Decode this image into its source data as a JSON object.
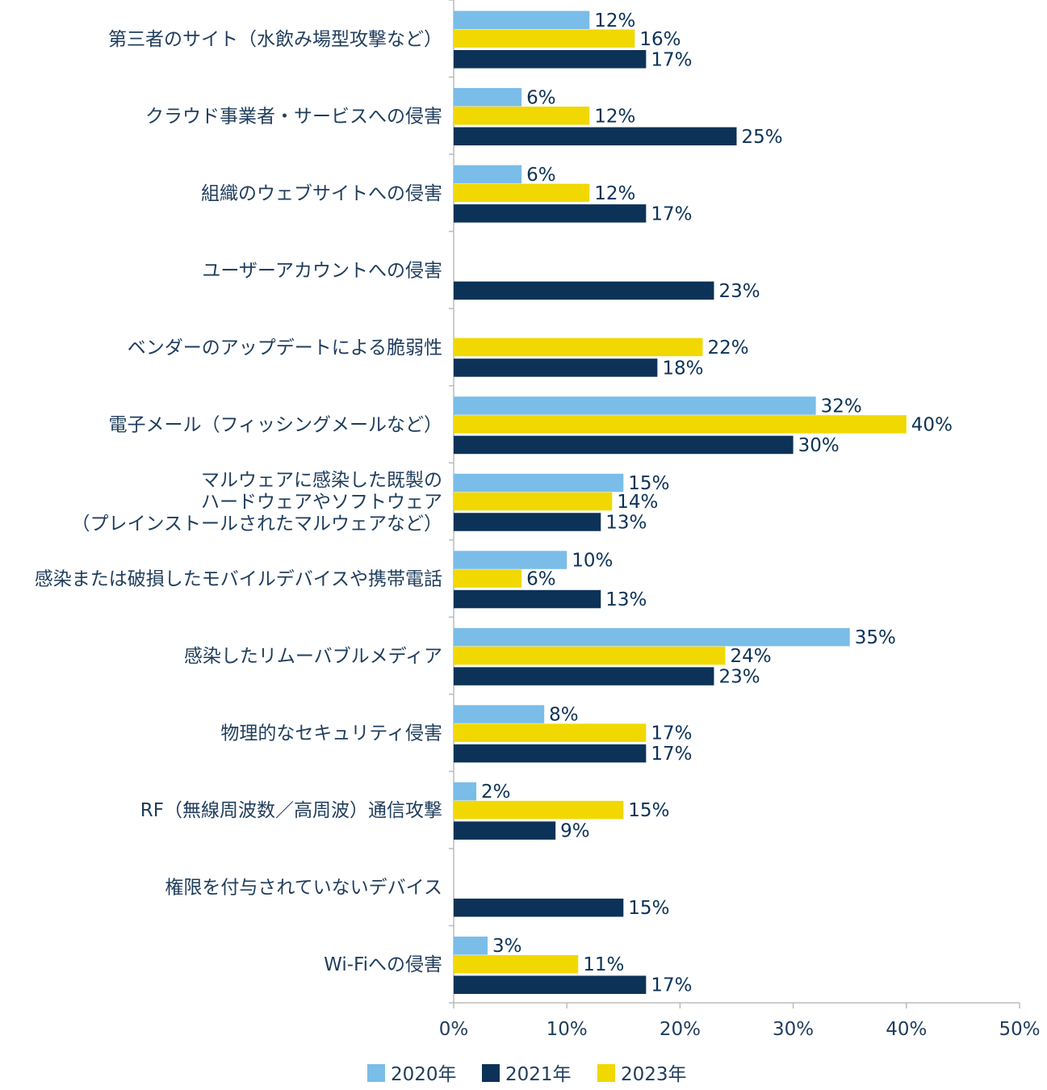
{
  "chart_data": {
    "type": "bar",
    "orientation": "horizontal",
    "categories": [
      [
        "第三者のサイト（水飲み場型攻撃など）"
      ],
      [
        "クラウド事業者・サービスへの侵害"
      ],
      [
        "組織のウェブサイトへの侵害"
      ],
      [
        "ユーザーアカウントへの侵害"
      ],
      [
        "ベンダーのアップデートによる脆弱性"
      ],
      [
        "電子メール（フィッシングメールなど）"
      ],
      [
        "マルウェアに感染した既製の",
        "ハードウェアやソフトウェア",
        "（プレインストールされたマルウェアなど）"
      ],
      [
        "感染または破損したモバイルデバイスや携帯電話"
      ],
      [
        "感染したリムーバブルメディア"
      ],
      [
        "物理的なセキュリティ侵害"
      ],
      [
        "RF（無線周波数／高周波）通信攻撃"
      ],
      [
        "権限を付与されていないデバイス"
      ],
      [
        "Wi-Fiへの侵害"
      ]
    ],
    "series": [
      {
        "name": "2020年",
        "color": "#7abde8",
        "values": [
          12,
          6,
          6,
          null,
          null,
          32,
          15,
          10,
          35,
          8,
          2,
          null,
          3
        ]
      },
      {
        "name": "2023年",
        "color": "#f0d800",
        "values": [
          16,
          12,
          12,
          null,
          22,
          40,
          14,
          6,
          24,
          17,
          15,
          null,
          11
        ]
      },
      {
        "name": "2021年",
        "color": "#0c3257",
        "values": [
          17,
          25,
          17,
          23,
          18,
          30,
          13,
          13,
          23,
          17,
          9,
          15,
          17
        ]
      }
    ],
    "legend_order": [
      "2020年",
      "2021年",
      "2023年"
    ],
    "legend_position": "bottom",
    "xlim": [
      0,
      50
    ],
    "xticks": [
      0,
      10,
      20,
      30,
      40,
      50
    ],
    "tick_suffix": "%",
    "value_suffix": "%",
    "axis_color": "#bbbbbb"
  }
}
